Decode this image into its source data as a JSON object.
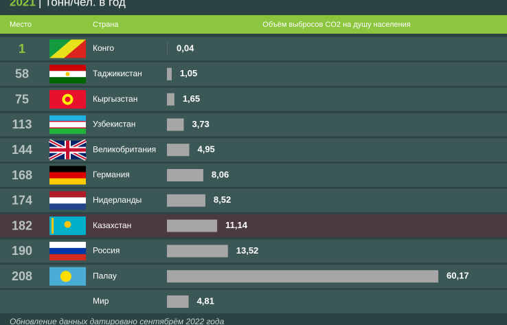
{
  "chart_data": {
    "type": "bar",
    "year": "2021",
    "title": "| Тонн/чел. в год",
    "columns": [
      "Место",
      "Страна",
      "Объём выбросов CO2 на душу населения"
    ],
    "ranks": [
      1,
      58,
      75,
      113,
      144,
      168,
      174,
      182,
      190,
      208,
      null
    ],
    "categories": [
      "Конго",
      "Таджикистан",
      "Кыргызстан",
      "Узбекистан",
      "Великобритания",
      "Германия",
      "Нидерланды",
      "Казахстан",
      "Россия",
      "Палау",
      "Мир"
    ],
    "values": [
      0.04,
      1.05,
      1.65,
      3.73,
      4.95,
      8.06,
      8.52,
      11.14,
      13.52,
      60.17,
      4.81
    ],
    "value_labels": [
      "0,04",
      "1,05",
      "1,65",
      "3,73",
      "4,95",
      "8,06",
      "8,52",
      "11,14",
      "13,52",
      "60,17",
      "4,81"
    ],
    "color": "#a6a6a6",
    "highlight_row": 7,
    "footnote": "Обновление данных датировано сентябрём 2022 года"
  }
}
